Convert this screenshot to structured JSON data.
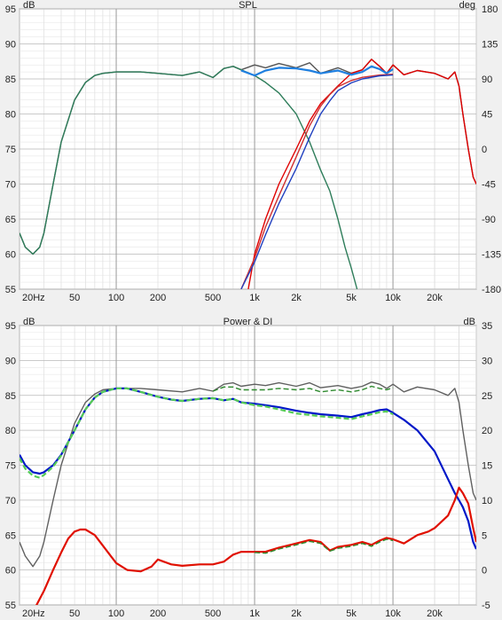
{
  "chart_data": [
    {
      "type": "line",
      "title": "SPL",
      "ylabel_left": "dB",
      "ylabel_right": "deg",
      "xscale": "log",
      "xlim": [
        20,
        40000
      ],
      "ylim": [
        55,
        95
      ],
      "ylim_right": [
        -180,
        180
      ],
      "grid": true,
      "x_ticks": [
        20,
        50,
        100,
        200,
        500,
        1000,
        2000,
        5000,
        10000,
        20000
      ],
      "x_tick_labels": [
        "20Hz",
        "50",
        "100",
        "200",
        "500",
        "1k",
        "2k",
        "5k",
        "10k",
        "20k"
      ],
      "y_ticks": [
        55,
        60,
        65,
        70,
        75,
        80,
        85,
        90,
        95
      ],
      "y_ticks_right": [
        -180,
        -135,
        -90,
        -45,
        0,
        45,
        90,
        135,
        180
      ],
      "series": [
        {
          "color": "#555555",
          "x": [
            20,
            22,
            25,
            28,
            30,
            35,
            40,
            50,
            60,
            70,
            80,
            100,
            150,
            200,
            300,
            400,
            500,
            600,
            700,
            800,
            1000,
            1200,
            1500,
            2000,
            2500,
            3000,
            4000,
            5000,
            6000,
            7000,
            8000,
            9000,
            10000,
            12000,
            15000,
            20000,
            25000,
            28000,
            30000,
            32000,
            35000,
            38000,
            40000
          ],
          "values": [
            63,
            61,
            60,
            61,
            63,
            70,
            76,
            82,
            84.5,
            85.5,
            85.8,
            86,
            86,
            85.8,
            85.5,
            86,
            85.2,
            86.5,
            86.8,
            86.3,
            87,
            86.6,
            87.2,
            86.6,
            87.3,
            85.8,
            86.6,
            85.8,
            86.3,
            87.8,
            86.8,
            85.8,
            87,
            85.6,
            86.2,
            85.8,
            85,
            86,
            84,
            80,
            75,
            71,
            70
          ]
        },
        {
          "color": "#2e7d5a",
          "x": [
            20,
            22,
            25,
            28,
            30,
            35,
            40,
            50,
            60,
            70,
            80,
            100,
            150,
            200,
            300,
            400,
            500,
            600,
            700,
            800,
            1000,
            1200,
            1500,
            2000,
            2500,
            3000,
            3500,
            4000,
            4500,
            5000,
            5500
          ],
          "values": [
            63,
            61,
            60,
            61,
            63,
            70,
            76,
            82,
            84.5,
            85.5,
            85.8,
            86,
            86,
            85.8,
            85.5,
            86,
            85.2,
            86.5,
            86.8,
            86.3,
            85.5,
            84.5,
            83,
            80,
            76,
            72,
            69,
            65,
            61,
            58,
            55
          ]
        },
        {
          "color": "#e00000",
          "x": [
            900,
            1000,
            1200,
            1500,
            2000,
            2500,
            3000,
            4000,
            5000,
            6000,
            7000,
            8000,
            9000,
            10000,
            12000,
            15000,
            20000,
            25000,
            28000,
            30000,
            32000,
            35000,
            38000,
            40000
          ],
          "values": [
            55,
            60,
            65,
            70,
            75,
            79,
            81.5,
            84,
            85.8,
            86.3,
            87.8,
            86.8,
            85.8,
            87,
            85.6,
            86.2,
            85.8,
            85,
            86,
            84,
            80,
            75,
            71,
            70
          ]
        },
        {
          "color": "#1e7fe0",
          "x": [
            800,
            1000,
            1200,
            1500,
            2000,
            2500,
            3000,
            4000,
            5000,
            6000,
            7000,
            8000,
            9000,
            10000
          ],
          "values": [
            86.2,
            85.5,
            86.2,
            86.6,
            86.5,
            86.2,
            85.8,
            86.2,
            85.6,
            86,
            86.8,
            86.4,
            85.8,
            86.4
          ]
        },
        {
          "color": "#d03030",
          "x": [
            800,
            1000,
            1200,
            1500,
            2000,
            2500,
            3000,
            3500,
            4000,
            5000,
            6000,
            8000,
            10000
          ],
          "values": [
            -180,
            -140,
            -100,
            -60,
            -10,
            30,
            55,
            70,
            80,
            88,
            92,
            95,
            96
          ],
          "axis": "right"
        },
        {
          "color": "#2040c0",
          "x": [
            800,
            1000,
            1200,
            1500,
            2000,
            2500,
            3000,
            3500,
            4000,
            5000,
            6000,
            8000,
            10000
          ],
          "values": [
            -180,
            -145,
            -110,
            -70,
            -25,
            15,
            45,
            62,
            75,
            85,
            90,
            94,
            95
          ],
          "axis": "right"
        }
      ]
    },
    {
      "type": "line",
      "title": "Power & DI",
      "ylabel_left": "dB",
      "ylabel_right": "dB",
      "xscale": "log",
      "xlim": [
        20,
        40000
      ],
      "ylim": [
        55,
        95
      ],
      "ylim_right": [
        -5,
        35
      ],
      "grid": true,
      "x_ticks": [
        20,
        50,
        100,
        200,
        500,
        1000,
        2000,
        5000,
        10000,
        20000
      ],
      "x_tick_labels": [
        "20Hz",
        "50",
        "100",
        "200",
        "500",
        "1k",
        "2k",
        "5k",
        "10k",
        "20k"
      ],
      "y_ticks": [
        55,
        60,
        65,
        70,
        75,
        80,
        85,
        90,
        95
      ],
      "y_ticks_right": [
        -5,
        0,
        5,
        10,
        15,
        20,
        25,
        30,
        35
      ],
      "series": [
        {
          "color": "#606060",
          "x": [
            20,
            22,
            25,
            28,
            30,
            35,
            40,
            50,
            60,
            70,
            80,
            100,
            150,
            200,
            300,
            400,
            500,
            600,
            700,
            800,
            1000,
            1200,
            1500,
            2000,
            2500,
            3000,
            4000,
            5000,
            6000,
            7000,
            8000,
            9000,
            10000,
            12000,
            15000,
            20000,
            25000,
            28000,
            30000,
            32000,
            35000,
            38000,
            40000
          ],
          "values": [
            64,
            62,
            60.5,
            62,
            64,
            70,
            75,
            81,
            84,
            85.2,
            85.8,
            86,
            86,
            85.8,
            85.5,
            86,
            85.6,
            86.6,
            86.8,
            86.3,
            86.6,
            86.4,
            86.8,
            86.3,
            86.8,
            86.1,
            86.4,
            86,
            86.3,
            86.9,
            86.6,
            86,
            86.6,
            85.5,
            86.2,
            85.8,
            85,
            86,
            84,
            80,
            75,
            71,
            70
          ]
        },
        {
          "color": "#2e8a2e",
          "x": [
            500,
            600,
            700,
            800,
            1000,
            1200,
            1500,
            2000,
            2500,
            3000,
            4000,
            5000,
            6000,
            7000,
            8000,
            9000,
            10000
          ],
          "values": [
            85.6,
            86.2,
            86.2,
            85.8,
            85.8,
            85.8,
            86,
            85.8,
            86,
            85.5,
            85.8,
            85.5,
            85.8,
            86.3,
            86,
            85.8,
            86.1
          ],
          "dashed": true
        },
        {
          "color": "#0018c8",
          "x": [
            20,
            22,
            25,
            28,
            30,
            35,
            40,
            50,
            60,
            70,
            80,
            100,
            120,
            150,
            200,
            250,
            300,
            400,
            500,
            600,
            700,
            800,
            1000,
            1200,
            1500,
            2000,
            2500,
            3000,
            4000,
            5000,
            6000,
            7000,
            8000,
            9000,
            10000,
            12000,
            15000,
            20000,
            25000,
            28000,
            30000,
            32000,
            35000,
            38000,
            40000
          ],
          "values": [
            76.5,
            75,
            74,
            73.8,
            74,
            75,
            76.5,
            80,
            83,
            84.7,
            85.5,
            86,
            86,
            85.5,
            84.8,
            84.4,
            84.2,
            84.5,
            84.6,
            84.3,
            84.5,
            84,
            83.8,
            83.6,
            83.3,
            82.8,
            82.5,
            82.3,
            82.1,
            81.9,
            82.3,
            82.6,
            82.9,
            83,
            82.5,
            81.5,
            80,
            77,
            73,
            71,
            70,
            69,
            67,
            64,
            63
          ]
        },
        {
          "color": "#55cc55",
          "x": [
            20,
            22,
            25,
            28,
            30,
            35,
            40,
            50,
            60,
            70,
            80,
            100,
            120,
            150,
            200,
            250,
            300,
            400,
            500,
            600,
            700,
            800,
            1000,
            1200,
            1500,
            2000,
            2500,
            3000,
            4000,
            5000,
            6000,
            7000,
            8000,
            9000,
            10000
          ],
          "values": [
            76,
            74.5,
            73.5,
            73.2,
            73.6,
            74.8,
            76.4,
            80,
            83,
            84.7,
            85.5,
            86,
            86,
            85.5,
            84.8,
            84.4,
            84.2,
            84.5,
            84.6,
            84.3,
            84.5,
            84,
            83.6,
            83.4,
            83,
            82.4,
            82.2,
            82,
            81.8,
            81.6,
            82,
            82.3,
            82.6,
            82.7,
            82.3
          ],
          "dashed": true
        },
        {
          "color": "#e01000",
          "axis": "right",
          "x": [
            20,
            25,
            30,
            35,
            40,
            45,
            50,
            55,
            60,
            70,
            80,
            100,
            120,
            150,
            180,
            200,
            250,
            300,
            400,
            500,
            600,
            700,
            800,
            1000,
            1200,
            1500,
            2000,
            2500,
            3000,
            3500,
            4000,
            5000,
            6000,
            7000,
            8000,
            9000,
            10000,
            12000,
            15000,
            18000,
            20000,
            25000,
            28000,
            30000,
            32000,
            35000,
            38000,
            40000
          ],
          "values": [
            -6,
            -6,
            -3,
            0,
            2.5,
            4.5,
            5.5,
            5.8,
            5.8,
            5,
            3.5,
            1,
            0,
            -0.2,
            0.5,
            1.5,
            0.8,
            0.6,
            0.8,
            0.8,
            1.2,
            2.2,
            2.6,
            2.6,
            2.6,
            3.2,
            3.8,
            4.3,
            4,
            2.8,
            3.3,
            3.6,
            4,
            3.6,
            4.2,
            4.6,
            4.4,
            3.8,
            5,
            5.5,
            6,
            7.8,
            10,
            11.8,
            11,
            9.5,
            6,
            4
          ]
        },
        {
          "color": "#2e8a2e",
          "axis": "right",
          "dashed": true,
          "x": [
            1000,
            1200,
            1500,
            2000,
            2500,
            3000,
            3500,
            4000,
            5000,
            6000,
            7000,
            8000,
            9000,
            10000
          ],
          "values": [
            2.5,
            2.4,
            3,
            3.6,
            4.1,
            3.8,
            2.7,
            3.1,
            3.4,
            3.8,
            3.4,
            4,
            4.4,
            4.2
          ]
        }
      ]
    }
  ]
}
